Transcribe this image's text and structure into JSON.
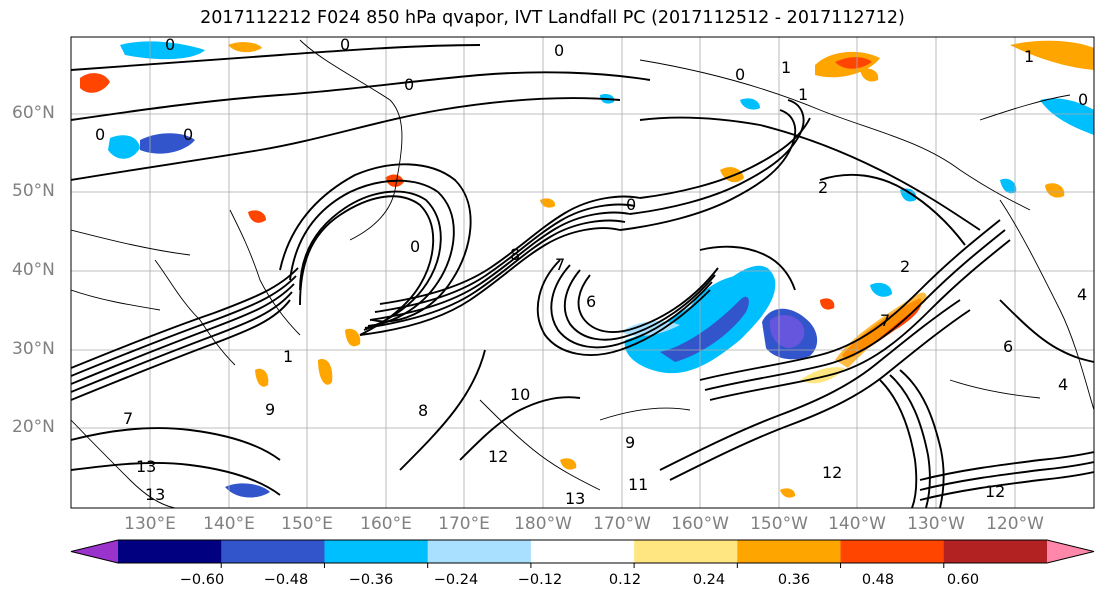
{
  "title": "2017112212 F024 850 hPa qvapor, IVT Landfall PC (2017112512 - 2017112712)",
  "map": {
    "lat_labels": [
      "60°N",
      "50°N",
      "40°N",
      "30°N",
      "20°N"
    ],
    "lon_labels": [
      "130°E",
      "140°E",
      "150°E",
      "160°E",
      "170°E",
      "180°W",
      "170°W",
      "160°W",
      "150°W",
      "140°W",
      "130°W",
      "120°W"
    ],
    "extent": {
      "lon_min": 120,
      "lon_max": 245,
      "lat_min": 10,
      "lat_max": 69
    },
    "contour_labels_visible": [
      "0",
      "1",
      "2",
      "4",
      "6",
      "7",
      "8",
      "9",
      "10",
      "11",
      "12",
      "13"
    ]
  },
  "colorbar": {
    "tick_labels": [
      "−0.60",
      "−0.48",
      "−0.36",
      "−0.24",
      "−0.12",
      "0.12",
      "0.24",
      "0.36",
      "0.48",
      "0.60"
    ],
    "colors": [
      "#9a33cc",
      "#010080",
      "#3355cc",
      "#00bfff",
      "#aae0ff",
      "#ffffff",
      "#ffe680",
      "#ffa500",
      "#ff4500",
      "#b22222",
      "#ff88aa"
    ],
    "extend": "both"
  }
}
